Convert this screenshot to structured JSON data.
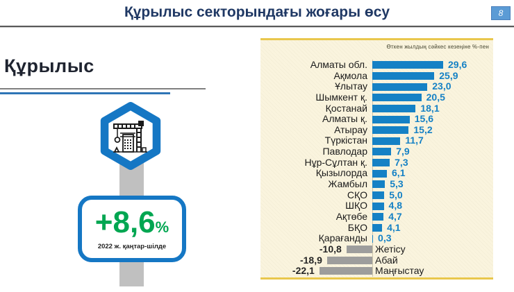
{
  "header": {
    "title": "Құрылыс секторындағы жоғары өсу",
    "page_number": "8"
  },
  "left_panel": {
    "heading": "Құрылыс",
    "icon": "construction-crane-icon",
    "badge": {
      "value": "+8,6",
      "percent": "%",
      "caption": "2022 ж. қаңтар-шілде"
    }
  },
  "colors": {
    "title_navy": "#1F3864",
    "heading_dark": "#1f2430",
    "line_blue": "#2E75B6",
    "brand_blue": "#1577C4",
    "green": "#00A651",
    "gold": "#E9C74C",
    "cream": "#FAF4DE",
    "bar_blue": "#1581C5",
    "bar_gray": "#9D9D9C",
    "connector_gray": "#C0C0C0",
    "page_badge_blue": "#5B9BD5",
    "divider_gray": "#595959"
  },
  "chart_data": {
    "type": "bar",
    "orientation": "horizontal",
    "title": "",
    "note": "Өткен жылдың сәйкес кезеңіне %-пен",
    "grid": false,
    "legend": false,
    "axis_range": [
      -25,
      32
    ],
    "categories": [
      "Алматы обл.",
      "Ақмола",
      "Ұлытау",
      "Шымкент қ.",
      "Қостанай",
      "Алматы қ.",
      "Атырау",
      "Түркістан",
      "Павлодар",
      "Нұр-Сұлтан қ.",
      "Қызылорда",
      "Жамбыл",
      "СҚО",
      "ШҚО",
      "Ақтөбе",
      "БҚО",
      "Қарағанды",
      "Жетісу",
      "Абай",
      "Маңғыстау"
    ],
    "values": [
      29.6,
      25.9,
      23.0,
      20.5,
      18.1,
      15.6,
      15.2,
      11.7,
      7.9,
      7.3,
      6.1,
      5.3,
      5.0,
      4.8,
      4.7,
      4.1,
      0.3,
      -10.8,
      -18.9,
      -22.1
    ],
    "value_labels": [
      "29,6",
      "25,9",
      "23,0",
      "20,5",
      "18,1",
      "15,6",
      "15,2",
      "11,7",
      "7,9",
      "7,3",
      "6,1",
      "5,3",
      "5,0",
      "4,8",
      "4,7",
      "4,1",
      "0,3",
      "-10,8",
      "-18,9",
      "-22,1"
    ],
    "positive_color": "#1581C5",
    "negative_color": "#9D9D9C"
  }
}
